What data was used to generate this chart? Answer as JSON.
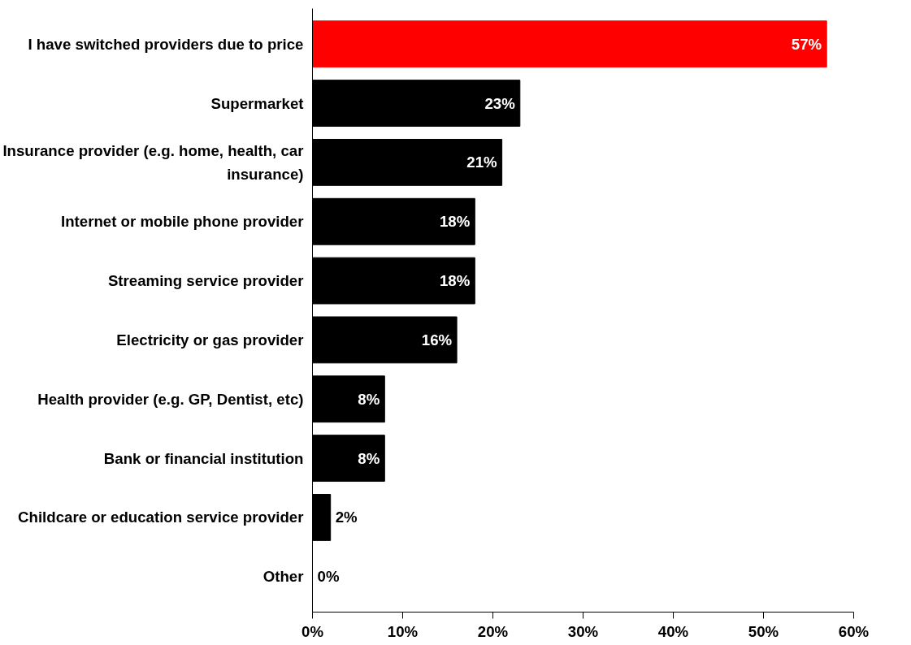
{
  "chart_data": {
    "type": "bar",
    "orientation": "horizontal",
    "categories": [
      "I have switched providers due to price",
      "Supermarket",
      "Insurance provider (e.g. home, health, car insurance)",
      "Internet or mobile phone provider",
      "Streaming service provider",
      "Electricity or gas provider",
      "Health provider (e.g. GP, Dentist, etc)",
      "Bank or financial institution",
      "Childcare or education service provider",
      "Other"
    ],
    "values": [
      57,
      23,
      21,
      18,
      18,
      16,
      8,
      8,
      2,
      0
    ],
    "value_labels": [
      "57%",
      "23%",
      "21%",
      "18%",
      "18%",
      "16%",
      "8%",
      "8%",
      "2%",
      "0%"
    ],
    "colors": [
      "#ff0000",
      "#000000",
      "#000000",
      "#000000",
      "#000000",
      "#000000",
      "#000000",
      "#000000",
      "#000000",
      "#000000"
    ],
    "xlim": [
      0,
      60
    ],
    "xticks": [
      {
        "value": 0,
        "label": "0%"
      },
      {
        "value": 10,
        "label": "10%"
      },
      {
        "value": 20,
        "label": "20%"
      },
      {
        "value": 30,
        "label": "30%"
      },
      {
        "value": 40,
        "label": "40%"
      },
      {
        "value": 50,
        "label": "50%"
      },
      {
        "value": 60,
        "label": "60%"
      }
    ],
    "grid": false
  }
}
